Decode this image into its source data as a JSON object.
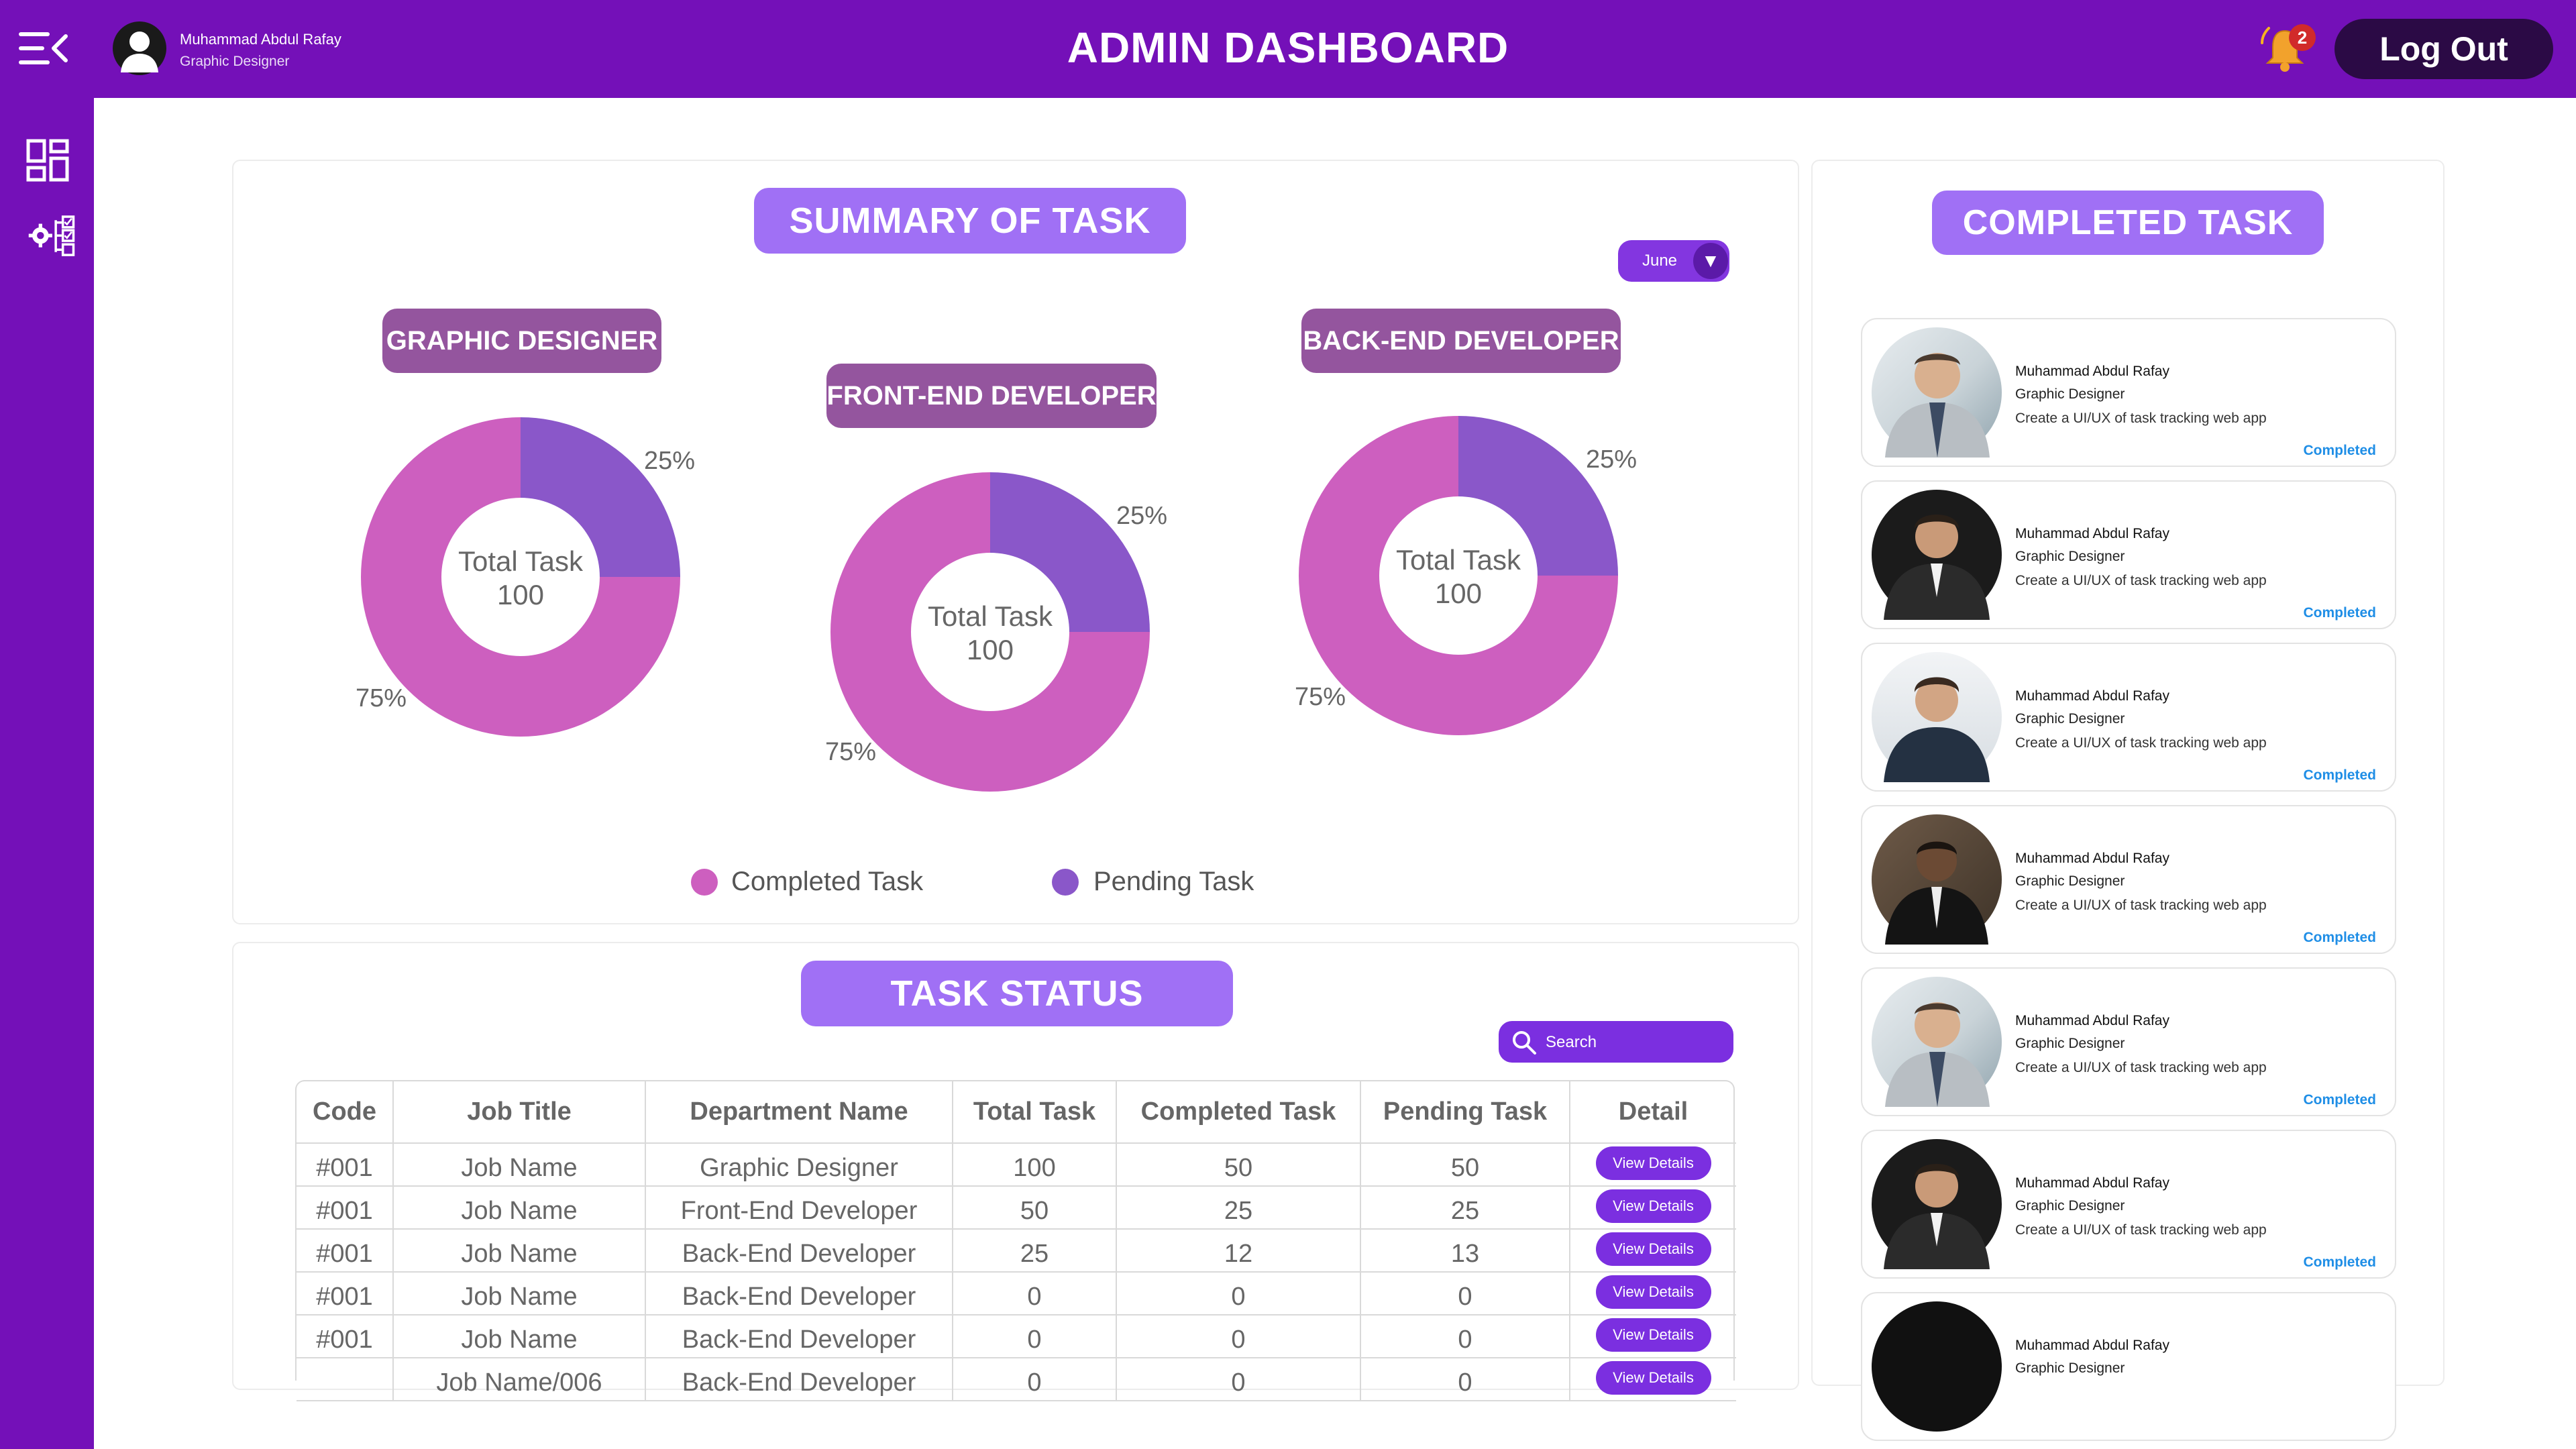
{
  "header": {
    "title": "ADMIN DASHBOARD",
    "user_name": "Muhammad Abdul Rafay",
    "user_role": "Graphic Designer",
    "notification_count": "2",
    "logout_label": "Log Out",
    "color": "#7410b8"
  },
  "sidebar": {
    "items": [
      {
        "icon": "dashboard-grid-icon"
      },
      {
        "icon": "settings-tasks-icon"
      }
    ]
  },
  "summary": {
    "title": "SUMMARY OF TASK",
    "month": "June",
    "departments": [
      {
        "name": "GRAPHIC DESIGNER",
        "center_label": "Total Task",
        "total": "100",
        "completed_pct": "75%",
        "pending_pct": "25%"
      },
      {
        "name": "FRONT-END DEVELOPER",
        "center_label": "Total Task",
        "total": "100",
        "completed_pct": "75%",
        "pending_pct": "25%"
      },
      {
        "name": "BACK-END DEVELOPER",
        "center_label": "Total Task",
        "total": "100",
        "completed_pct": "75%",
        "pending_pct": "25%"
      }
    ],
    "legend": [
      {
        "label": "Completed Task",
        "color": "#cd5fbf"
      },
      {
        "label": "Pending Task",
        "color": "#8a57c9"
      }
    ]
  },
  "chart_data": [
    {
      "type": "pie",
      "title": "GRAPHIC DESIGNER",
      "categories": [
        "Completed Task",
        "Pending Task"
      ],
      "values": [
        75,
        25
      ]
    },
    {
      "type": "pie",
      "title": "FRONT-END DEVELOPER",
      "categories": [
        "Completed Task",
        "Pending Task"
      ],
      "values": [
        75,
        25
      ]
    },
    {
      "type": "pie",
      "title": "BACK-END DEVELOPER",
      "categories": [
        "Completed Task",
        "Pending Task"
      ],
      "values": [
        75,
        25
      ]
    }
  ],
  "task_status": {
    "title": "TASK STATUS",
    "search_placeholder": "Search",
    "columns": [
      "Code",
      "Job Title",
      "Department  Name",
      "Total Task",
      "Completed Task",
      "Pending Task",
      "Detail"
    ],
    "button_label": "View Details",
    "rows": [
      [
        "#001",
        "Job Name",
        "Graphic Designer",
        "100",
        "50",
        "50"
      ],
      [
        "#001",
        "Job Name",
        "Front-End Developer",
        "50",
        "25",
        "25"
      ],
      [
        "#001",
        "Job Name",
        "Back-End Developer",
        "25",
        "12",
        "13"
      ],
      [
        "#001",
        "Job Name",
        "Back-End Developer",
        "0",
        "0",
        "0"
      ],
      [
        "#001",
        "Job Name",
        "Back-End Developer",
        "0",
        "0",
        "0"
      ],
      [
        "",
        "Job Name/006",
        "Back-End Developer",
        "0",
        "0",
        "0"
      ]
    ]
  },
  "completed": {
    "title": "COMPLETED TASK",
    "cards": [
      {
        "name": "Muhammad Abdul Rafay",
        "role": "Graphic Designer",
        "desc": "Create a UI/UX of task tracking web app",
        "status": "Completed"
      },
      {
        "name": "Muhammad Abdul Rafay",
        "role": "Graphic Designer",
        "desc": "Create a UI/UX of task tracking web app",
        "status": "Completed"
      },
      {
        "name": "Muhammad Abdul Rafay",
        "role": "Graphic Designer",
        "desc": "Create a UI/UX of task tracking web app",
        "status": "Completed"
      },
      {
        "name": "Muhammad Abdul Rafay",
        "role": "Graphic Designer",
        "desc": "Create a UI/UX of task tracking web app",
        "status": "Completed"
      },
      {
        "name": "Muhammad Abdul Rafay",
        "role": "Graphic Designer",
        "desc": "Create a UI/UX of task tracking web app",
        "status": "Completed"
      },
      {
        "name": "Muhammad Abdul Rafay",
        "role": "Graphic Designer",
        "desc": "Create a UI/UX of task tracking web app",
        "status": "Completed"
      },
      {
        "name": "Muhammad Abdul Rafay",
        "role": "Graphic Designer",
        "desc": "",
        "status": ""
      }
    ]
  }
}
